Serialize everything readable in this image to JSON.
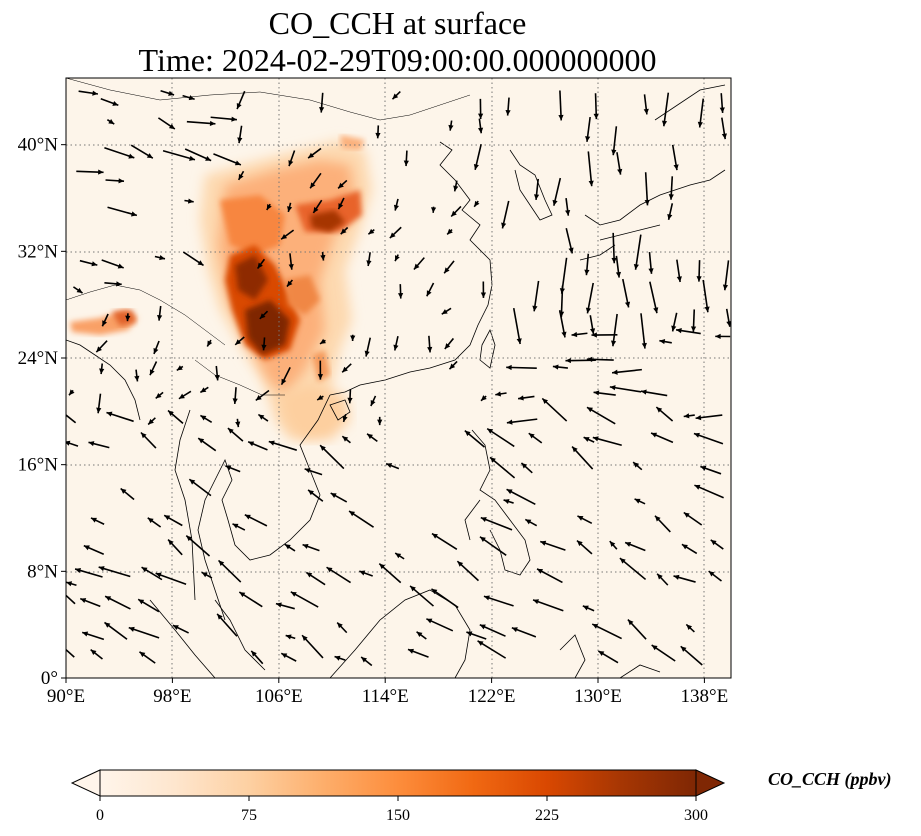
{
  "title_line1": "CO_CCH at surface",
  "title_line2": "Time: 2024-02-29T09:00:00.000000000",
  "map": {
    "projection": "PlateCarree",
    "lon_range": [
      90,
      140
    ],
    "lat_range": [
      0,
      45
    ],
    "lon_ticks": [
      "90°E",
      "98°E",
      "106°E",
      "114°E",
      "122°E",
      "130°E",
      "138°E"
    ],
    "lat_ticks": [
      "0°",
      "8°N",
      "16°N",
      "24°N",
      "32°N",
      "40°N"
    ],
    "gridlines": "dotted"
  },
  "colorbar": {
    "label": "CO_CCH (ppbv)",
    "ticks": [
      "0",
      "75",
      "150",
      "225",
      "300"
    ],
    "vmin": 0,
    "vmax": 300,
    "colormap": [
      "#fff5eb",
      "#fee6ce",
      "#fdd0a2",
      "#fdae6b",
      "#fd8d3c",
      "#f16913",
      "#d94801",
      "#a63603",
      "#7f2704"
    ],
    "extend": "both"
  },
  "colors": {
    "land_bg": "#fdf5ea",
    "coast": "#000000",
    "arrow": "#000000"
  }
}
